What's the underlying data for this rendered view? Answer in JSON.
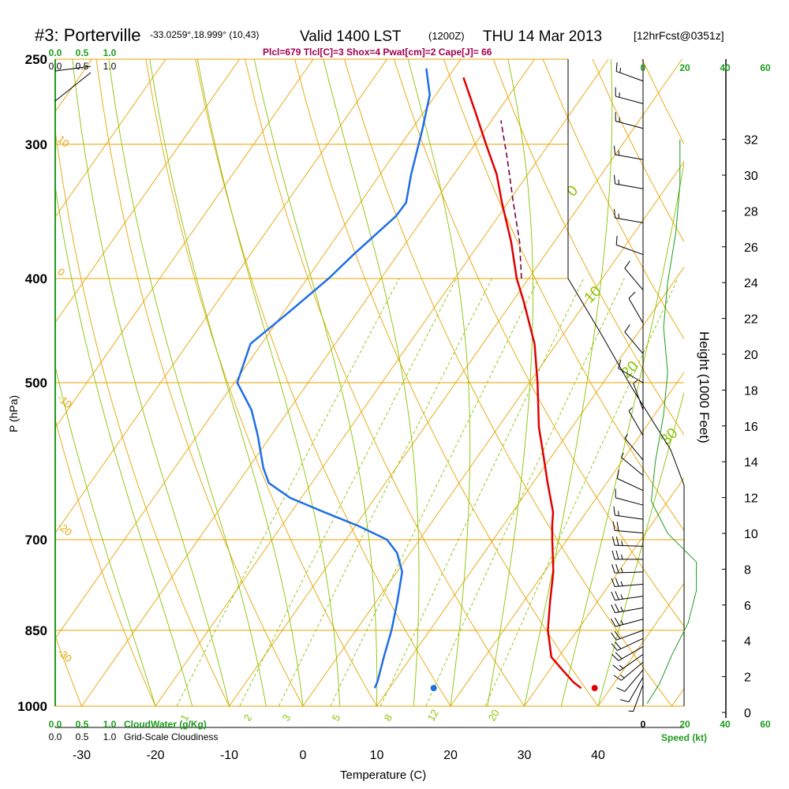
{
  "header": {
    "station": "#3: Porterville",
    "coords": "-33.0259°,18.999° (10,43)",
    "valid": "Valid 1400 LST",
    "zulu": "(1200Z)",
    "date": "THU 14 Mar 2013",
    "forecast": "[12hrFcst@0351z]",
    "indices": "Plcl=679 Tlcl[C]=3 Shox=4 Pwat[cm]=2 Cape[J]= 66"
  },
  "labels": {
    "y_left": "P (hPa)",
    "y_right": "Height (1000 Feet)",
    "x": "Temperature (C)",
    "cloudwater": "CloudWater (g/Kg)",
    "cloudiness": "Grid-Scale Cloudiness",
    "speed": "Speed (kt)"
  },
  "colors": {
    "isobar": "#e8a300",
    "isotherm": "#e8a300",
    "dry_adiabat": "#e8a300",
    "moist_adiabat": "#88c400",
    "mixing_ratio": "#88c400",
    "temperature": "#e00000",
    "dewpoint": "#1e6ee8",
    "parcel": "#7a0040",
    "wind_profile": "#1e9b1e",
    "green_text": "#1e9b1e",
    "title_purple": "#a00050"
  },
  "chart_data": {
    "type": "line",
    "diagram": "skew-T log-P",
    "pressure_ticks": [
      250,
      300,
      400,
      500,
      700,
      850,
      1000
    ],
    "temperature_ticks": [
      -30,
      -20,
      -10,
      0,
      10,
      20,
      30,
      40
    ],
    "height_ticks_kft": [
      0,
      2,
      4,
      6,
      8,
      10,
      12,
      14,
      16,
      18,
      20,
      22,
      24,
      26,
      28,
      30,
      32
    ],
    "speed_ticks_top": [
      "0",
      "20",
      "40",
      "60"
    ],
    "speed_ticks_bottom": [
      "0",
      "20",
      "40",
      "60"
    ],
    "cloudwater_ticks": [
      "0.0",
      "0.5",
      "1.0"
    ],
    "cloudiness_ticks": [
      "0.0",
      "0.5",
      "1.0"
    ],
    "mixing_ratio_labels": [
      "1",
      "2",
      "3",
      "5",
      "8",
      "12",
      "20"
    ],
    "moist_adiabat_labels": [
      "0",
      "10",
      "20",
      "30"
    ],
    "dry_adiabat_labels": [
      "10",
      "0",
      "-10",
      "-20",
      "-30"
    ],
    "temperature_profile": [
      {
        "p": 962,
        "t": 36.0
      },
      {
        "p": 950,
        "t": 34.4
      },
      {
        "p": 925,
        "t": 31.7
      },
      {
        "p": 900,
        "t": 29.0
      },
      {
        "p": 850,
        "t": 26.0
      },
      {
        "p": 800,
        "t": 23.6
      },
      {
        "p": 750,
        "t": 21.2
      },
      {
        "p": 700,
        "t": 18.0
      },
      {
        "p": 680,
        "t": 16.7
      },
      {
        "p": 660,
        "t": 15.5
      },
      {
        "p": 620,
        "t": 12.0
      },
      {
        "p": 580,
        "t": 8.4
      },
      {
        "p": 550,
        "t": 5.5
      },
      {
        "p": 500,
        "t": 1.1
      },
      {
        "p": 460,
        "t": -3.0
      },
      {
        "p": 420,
        "t": -8.5
      },
      {
        "p": 400,
        "t": -11.6
      },
      {
        "p": 370,
        "t": -15.8
      },
      {
        "p": 340,
        "t": -20.8
      },
      {
        "p": 320,
        "t": -24.2
      },
      {
        "p": 300,
        "t": -28.5
      },
      {
        "p": 280,
        "t": -33.0
      },
      {
        "p": 260,
        "t": -37.9
      }
    ],
    "dewpoint_profile": [
      {
        "p": 962,
        "td": 8.0
      },
      {
        "p": 950,
        "td": 7.8
      },
      {
        "p": 900,
        "td": 6.3
      },
      {
        "p": 850,
        "td": 4.8
      },
      {
        "p": 800,
        "td": 2.9
      },
      {
        "p": 750,
        "td": 0.7
      },
      {
        "p": 720,
        "td": -1.8
      },
      {
        "p": 700,
        "td": -4.4
      },
      {
        "p": 680,
        "td": -9.5
      },
      {
        "p": 660,
        "td": -15.5
      },
      {
        "p": 640,
        "td": -21.5
      },
      {
        "p": 620,
        "td": -25.8
      },
      {
        "p": 600,
        "td": -28.0
      },
      {
        "p": 560,
        "td": -31.8
      },
      {
        "p": 530,
        "td": -35.1
      },
      {
        "p": 500,
        "td": -39.6
      },
      {
        "p": 460,
        "td": -41.5
      },
      {
        "p": 430,
        "td": -39.3
      },
      {
        "p": 400,
        "td": -37.1
      },
      {
        "p": 380,
        "td": -36.0
      },
      {
        "p": 350,
        "td": -33.9
      },
      {
        "p": 340,
        "td": -33.8
      },
      {
        "p": 320,
        "td": -35.8
      },
      {
        "p": 290,
        "td": -38.6
      },
      {
        "p": 270,
        "td": -40.8
      },
      {
        "p": 255,
        "td": -43.8
      }
    ],
    "parcel_profile": [
      {
        "p": 400,
        "t": -11.6
      },
      {
        "p": 370,
        "t": -15.3
      },
      {
        "p": 340,
        "t": -19.9
      },
      {
        "p": 310,
        "t": -24.8
      },
      {
        "p": 285,
        "t": -29.4
      }
    ],
    "surface": {
      "p": 962,
      "t": 37.5,
      "td": 16.0
    },
    "height_curve_kft": [
      0.5,
      1.6,
      3.2,
      5.0,
      6.8,
      8.4,
      10.0,
      11.8,
      14.0,
      16.6,
      19.0,
      21.5,
      24.0,
      26.8,
      29.5,
      32.0
    ],
    "wind_speed_kt": [
      2,
      8,
      14,
      22,
      26,
      26,
      12,
      4,
      6,
      10,
      12,
      10,
      12,
      16,
      18,
      18
    ],
    "wind_barbs": [
      {
        "p": 955,
        "speed": 5,
        "dir": 200
      },
      {
        "p": 940,
        "speed": 10,
        "dir": 210
      },
      {
        "p": 925,
        "speed": 10,
        "dir": 220
      },
      {
        "p": 910,
        "speed": 15,
        "dir": 230
      },
      {
        "p": 895,
        "speed": 15,
        "dir": 235
      },
      {
        "p": 880,
        "speed": 20,
        "dir": 240
      },
      {
        "p": 865,
        "speed": 20,
        "dir": 245
      },
      {
        "p": 850,
        "speed": 20,
        "dir": 250
      },
      {
        "p": 830,
        "speed": 25,
        "dir": 255
      },
      {
        "p": 810,
        "speed": 25,
        "dir": 260
      },
      {
        "p": 790,
        "speed": 25,
        "dir": 262
      },
      {
        "p": 770,
        "speed": 25,
        "dir": 265
      },
      {
        "p": 750,
        "speed": 25,
        "dir": 268
      },
      {
        "p": 730,
        "speed": 25,
        "dir": 270
      },
      {
        "p": 710,
        "speed": 25,
        "dir": 272
      },
      {
        "p": 690,
        "speed": 20,
        "dir": 275
      },
      {
        "p": 670,
        "speed": 15,
        "dir": 278
      },
      {
        "p": 650,
        "speed": 10,
        "dir": 285
      },
      {
        "p": 630,
        "speed": 10,
        "dir": 295
      },
      {
        "p": 610,
        "speed": 5,
        "dir": 310
      },
      {
        "p": 590,
        "speed": 5,
        "dir": 320
      },
      {
        "p": 560,
        "speed": 5,
        "dir": 330
      },
      {
        "p": 530,
        "speed": 5,
        "dir": 340
      },
      {
        "p": 500,
        "speed": 10,
        "dir": 300
      },
      {
        "p": 470,
        "speed": 10,
        "dir": 320
      },
      {
        "p": 440,
        "speed": 10,
        "dir": 330
      },
      {
        "p": 410,
        "speed": 10,
        "dir": 320
      },
      {
        "p": 380,
        "speed": 10,
        "dir": 290
      },
      {
        "p": 355,
        "speed": 15,
        "dir": 280
      },
      {
        "p": 330,
        "speed": 15,
        "dir": 280
      },
      {
        "p": 310,
        "speed": 15,
        "dir": 280
      },
      {
        "p": 290,
        "speed": 15,
        "dir": 285
      },
      {
        "p": 275,
        "speed": 15,
        "dir": 285
      },
      {
        "p": 262,
        "speed": 15,
        "dir": 290
      }
    ]
  }
}
